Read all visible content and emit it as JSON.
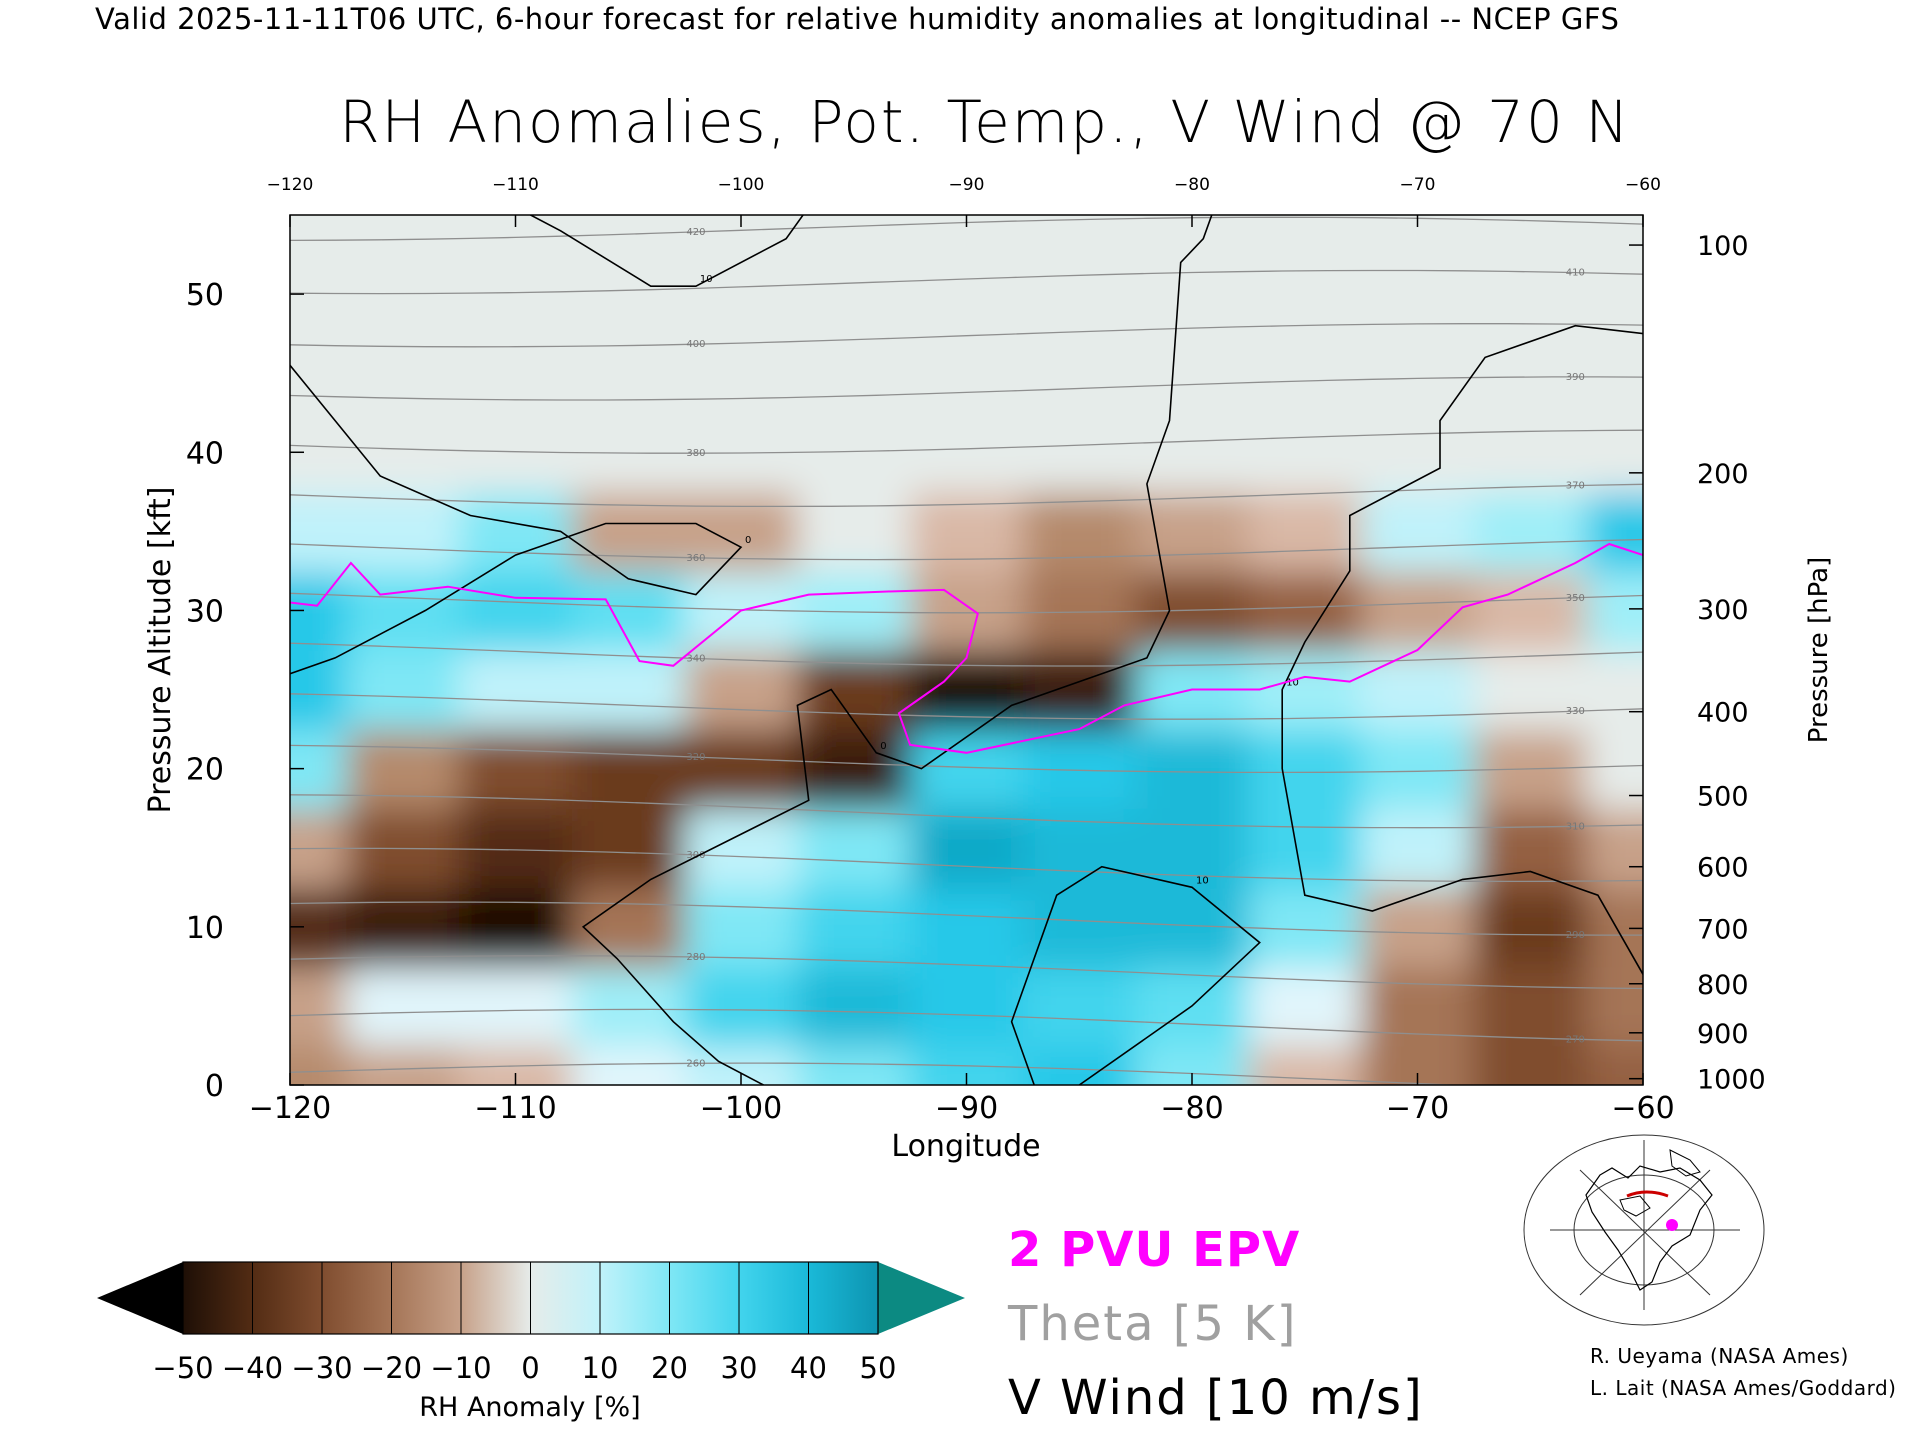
{
  "header": "Valid 2025-11-11T06 UTC, 6-hour forecast for relative humidity anomalies at longitudinal -- NCEP GFS",
  "title": "RH Anomalies, Pot. Temp., V Wind @ 70 N",
  "chart_data": {
    "type": "heatmap",
    "title": "RH Anomalies, Pot. Temp., V Wind @ 70 N",
    "xlabel": "Longitude",
    "ylabel_left": "Pressure Altitude [kft]",
    "ylabel_right": "Pressure [hPa]",
    "xlim": [
      -120,
      -60
    ],
    "ylim": [
      0,
      55
    ],
    "x_ticks": [
      -120,
      -110,
      -100,
      -90,
      -80,
      -70,
      -60
    ],
    "x_tick_labels": [
      "−120",
      "−110",
      "−100",
      "−90",
      "−80",
      "−70",
      "−60"
    ],
    "y_ticks": [
      0,
      10,
      20,
      30,
      40,
      50
    ],
    "y_tick_labels": [
      "0",
      "10",
      "20",
      "30",
      "40",
      "50"
    ],
    "pressure_ticks": [
      {
        "hPa": 1000,
        "label": "1000",
        "kft": 0.4
      },
      {
        "hPa": 900,
        "label": "900",
        "kft": 3.3
      },
      {
        "hPa": 800,
        "label": "800",
        "kft": 6.4
      },
      {
        "hPa": 700,
        "label": "700",
        "kft": 9.9
      },
      {
        "hPa": 600,
        "label": "600",
        "kft": 13.8
      },
      {
        "hPa": 500,
        "label": "500",
        "kft": 18.3
      },
      {
        "hPa": 400,
        "label": "400",
        "kft": 23.6
      },
      {
        "hPa": 300,
        "label": "300",
        "kft": 30.1
      },
      {
        "hPa": 200,
        "label": "200",
        "kft": 38.7
      },
      {
        "hPa": 100,
        "label": "100",
        "kft": 53.1
      }
    ],
    "rh_anomaly_grid": {
      "lon": [
        -120,
        -115,
        -110,
        -105,
        -100,
        -95,
        -90,
        -85,
        -80,
        -75,
        -70,
        -65,
        -60
      ],
      "alt_kft": [
        0,
        5,
        10,
        15,
        20,
        25,
        30,
        35,
        40,
        45,
        50,
        55
      ],
      "values_pct": [
        [
          -15,
          -10,
          -5,
          5,
          10,
          20,
          30,
          35,
          20,
          -5,
          -20,
          -30,
          -25
        ],
        [
          -10,
          5,
          5,
          15,
          30,
          40,
          35,
          30,
          25,
          5,
          -20,
          -30,
          -20
        ],
        [
          -40,
          -45,
          -50,
          -20,
          20,
          30,
          35,
          40,
          40,
          20,
          -10,
          -35,
          -20
        ],
        [
          -10,
          -30,
          -40,
          -35,
          10,
          20,
          45,
          40,
          40,
          30,
          10,
          -25,
          -10
        ],
        [
          20,
          -15,
          -30,
          -35,
          -35,
          -45,
          30,
          35,
          40,
          30,
          20,
          -10,
          0
        ],
        [
          35,
          20,
          10,
          10,
          -10,
          -35,
          -50,
          -45,
          20,
          15,
          10,
          0,
          0
        ],
        [
          35,
          25,
          30,
          25,
          10,
          15,
          -10,
          -20,
          -30,
          -25,
          -10,
          -5,
          15
        ],
        [
          10,
          10,
          20,
          -10,
          -10,
          0,
          -5,
          -15,
          -10,
          -5,
          10,
          15,
          35
        ],
        [
          0,
          0,
          0,
          0,
          0,
          0,
          0,
          0,
          0,
          0,
          0,
          0,
          0
        ],
        [
          0,
          0,
          0,
          0,
          0,
          0,
          0,
          0,
          0,
          0,
          0,
          0,
          0
        ],
        [
          0,
          0,
          0,
          0,
          0,
          0,
          0,
          0,
          0,
          0,
          0,
          0,
          0
        ],
        [
          0,
          0,
          0,
          0,
          0,
          0,
          0,
          0,
          0,
          0,
          0,
          0,
          0
        ]
      ]
    },
    "theta_contours_K": [
      260,
      270,
      280,
      290,
      300,
      310,
      320,
      330,
      340,
      350,
      360,
      370,
      380,
      390,
      400,
      410,
      420
    ],
    "epv_2pvu_line": [
      [
        -120,
        30.5
      ],
      [
        -118.8,
        30.3
      ],
      [
        -117.3,
        33
      ],
      [
        -116,
        31
      ],
      [
        -113,
        31.5
      ],
      [
        -110,
        30.8
      ],
      [
        -106,
        30.7
      ],
      [
        -104.5,
        26.8
      ],
      [
        -103,
        26.5
      ],
      [
        -100,
        30
      ],
      [
        -97,
        31
      ],
      [
        -93.5,
        31.2
      ],
      [
        -91,
        31.3
      ],
      [
        -89.5,
        29.8
      ],
      [
        -90,
        27
      ],
      [
        -91,
        25.5
      ],
      [
        -92,
        24.5
      ],
      [
        -93,
        23.5
      ],
      [
        -92.5,
        21.5
      ],
      [
        -90,
        21
      ],
      [
        -85,
        22.5
      ],
      [
        -83,
        24
      ],
      [
        -80,
        25
      ],
      [
        -77,
        25
      ],
      [
        -75,
        25.8
      ],
      [
        -73,
        25.5
      ],
      [
        -70,
        27.5
      ],
      [
        -68,
        30.2
      ],
      [
        -66,
        31
      ],
      [
        -63,
        33
      ],
      [
        -61.5,
        34.2
      ],
      [
        -60,
        33.5
      ]
    ],
    "v_wind_contours": [
      {
        "label": "0",
        "points": [
          [
            -120,
            45.5
          ],
          [
            -118,
            42
          ],
          [
            -116,
            38.5
          ],
          [
            -112,
            36
          ],
          [
            -108,
            35
          ],
          [
            -105,
            32
          ],
          [
            -102,
            31
          ],
          [
            -100,
            34
          ],
          [
            -102,
            35.5
          ],
          [
            -106,
            35.5
          ],
          [
            -110,
            33.5
          ],
          [
            -114,
            30
          ],
          [
            -118,
            27
          ],
          [
            -120,
            26
          ]
        ]
      },
      {
        "label": "10",
        "points": [
          [
            -110,
            55.5
          ],
          [
            -108,
            54
          ],
          [
            -104,
            50.5
          ],
          [
            -102,
            50.5
          ],
          [
            -98,
            53.5
          ],
          [
            -97,
            55.5
          ]
        ]
      },
      {
        "label": "0",
        "points": [
          [
            -79,
            55.5
          ],
          [
            -79.5,
            53.5
          ],
          [
            -80.5,
            52
          ],
          [
            -81,
            42
          ],
          [
            -82,
            38
          ],
          [
            -81,
            30
          ],
          [
            -82,
            27
          ],
          [
            -88,
            24
          ],
          [
            -92,
            20
          ],
          [
            -94,
            21
          ],
          [
            -96,
            25
          ],
          [
            -97.5,
            24
          ],
          [
            -97,
            18
          ],
          [
            -104,
            13
          ],
          [
            -107,
            10
          ],
          [
            -105.5,
            8
          ],
          [
            -103,
            4
          ],
          [
            -101,
            1.5
          ],
          [
            -99,
            0
          ]
        ]
      },
      {
        "label": "10",
        "points": [
          [
            -87,
            0
          ],
          [
            -88,
            4
          ],
          [
            -86,
            12
          ],
          [
            -84,
            13.8
          ],
          [
            -80,
            12.5
          ],
          [
            -77,
            9
          ],
          [
            -80,
            5
          ],
          [
            -85,
            0
          ]
        ]
      },
      {
        "label": "10",
        "points": [
          [
            -60,
            47.5
          ],
          [
            -63,
            48
          ],
          [
            -67,
            46
          ],
          [
            -69,
            42
          ],
          [
            -69,
            39
          ],
          [
            -73,
            36
          ],
          [
            -73,
            32.5
          ],
          [
            -75,
            28
          ],
          [
            -76,
            25
          ],
          [
            -76,
            20
          ],
          [
            -75,
            12
          ],
          [
            -72,
            11
          ],
          [
            -68,
            13
          ],
          [
            -65,
            13.5
          ],
          [
            -62,
            12
          ],
          [
            -60,
            7
          ]
        ]
      }
    ]
  },
  "colorbar": {
    "label": "RH Anomaly [%]",
    "tick_labels": [
      "−50",
      "−40",
      "−30",
      "−20",
      "−10",
      "0",
      "10",
      "20",
      "30",
      "40",
      "50"
    ],
    "colors": [
      "#000000",
      "#3b1d0b",
      "#6b3a1c",
      "#946042",
      "#b58a6c",
      "#d9b8a6",
      "#f0e0d6",
      "#e1f5fb",
      "#9feef8",
      "#5fdff2",
      "#25c8e8",
      "#0fa9c8",
      "#0b7f98",
      "#0c8a82"
    ]
  },
  "legend": {
    "epv": "2 PVU EPV",
    "theta": "Theta [5 K]",
    "vwind": "V Wind [10 m/s]",
    "epv_color": "#ff00ff",
    "theta_color": "#a0a0a0",
    "vwind_color": "#000000"
  },
  "credits": {
    "line1": "R. Ueyama (NASA Ames)",
    "line2": "L. Lait (NASA Ames/Goddard)"
  }
}
